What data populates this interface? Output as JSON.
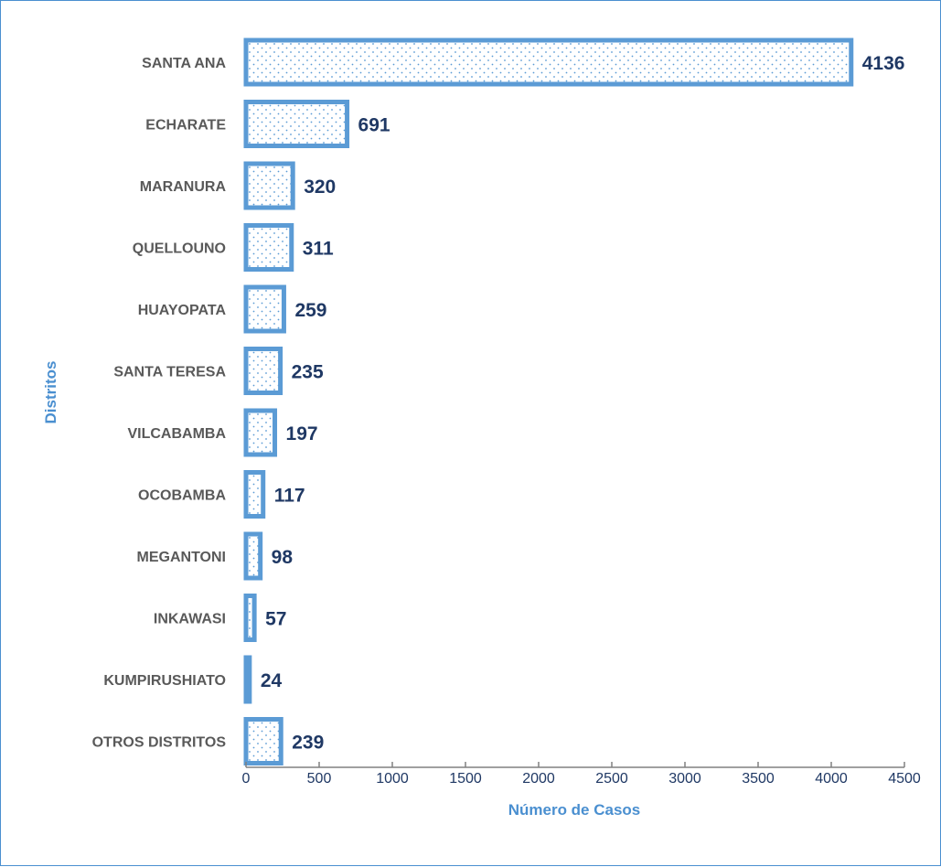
{
  "chart_data": {
    "type": "bar",
    "orientation": "horizontal",
    "categories": [
      "SANTA ANA",
      "ECHARATE",
      "MARANURA",
      "QUELLOUNO",
      "HUAYOPATA",
      "SANTA TERESA",
      "VILCABAMBA",
      "OCOBAMBA",
      "MEGANTONI",
      "INKAWASI",
      "KUMPIRUSHIATO",
      "OTROS DISTRITOS"
    ],
    "values": [
      4136,
      691,
      320,
      311,
      259,
      235,
      197,
      117,
      98,
      57,
      24,
      239
    ],
    "value_labels": [
      "4136",
      "691",
      "320",
      "311",
      "259",
      "235",
      "197",
      "117",
      "98",
      "57",
      "24",
      "239"
    ],
    "xlabel": "Número de Casos",
    "ylabel": "Distritos",
    "xlim": [
      0,
      4500
    ],
    "xticks": [
      "0",
      "500",
      "1000",
      "1500",
      "2000",
      "2500",
      "3000",
      "3500",
      "4000",
      "4500"
    ],
    "grid": false,
    "legend": "none",
    "colors": {
      "bar_border": "#5b9bd5",
      "bar_fill": "#ffffff",
      "dots": "#5b9bd5",
      "value_text": "#1f3864",
      "category_text": "#595959",
      "axis_title": "#4a8fd0",
      "axis_line": "#808080"
    }
  }
}
